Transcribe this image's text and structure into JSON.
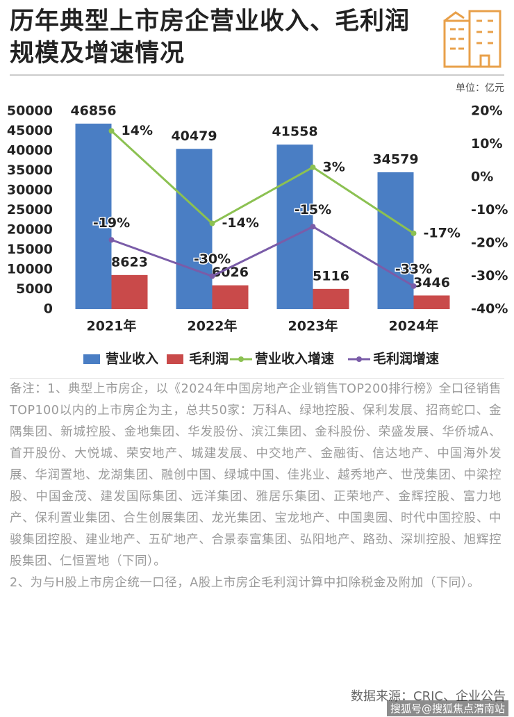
{
  "chart_data": {
    "type": "combo",
    "title": "历年典型上市房企营业收入、毛利润规模及增速情况",
    "unit": "单位：亿元",
    "categories": [
      "2021年",
      "2022年",
      "2023年",
      "2024年"
    ],
    "series": [
      {
        "name": "营业收入",
        "color": "#4a7ec4",
        "kind": "bar",
        "values": [
          46856,
          40479,
          41558,
          34579
        ]
      },
      {
        "name": "毛利润",
        "color": "#c94a4a",
        "kind": "bar",
        "values": [
          8623,
          6026,
          5116,
          3446
        ]
      },
      {
        "name": "营业收入增速",
        "color": "#8cc152",
        "kind": "line",
        "axis": "y2",
        "values": [
          14,
          -14,
          3,
          -17
        ],
        "value_labels": [
          "14%",
          "-14%",
          "3%",
          "-17%"
        ]
      },
      {
        "name": "毛利润增速",
        "color": "#7a5ca8",
        "kind": "line",
        "axis": "y2",
        "values": [
          -19,
          -30,
          -15,
          -33
        ],
        "value_labels": [
          "-19%",
          "-30%",
          "-15%",
          "-33%"
        ]
      }
    ],
    "ylim": [
      0,
      50000
    ],
    "yticks": [
      0,
      5000,
      10000,
      15000,
      20000,
      25000,
      30000,
      35000,
      40000,
      45000,
      50000
    ],
    "y2lim": [
      -40,
      20
    ],
    "y2ticks": [
      {
        "value": -40,
        "label": "-40%"
      },
      {
        "value": -30,
        "label": "-30%"
      },
      {
        "value": -20,
        "label": "-20%"
      },
      {
        "value": -10,
        "label": "-10%"
      },
      {
        "value": 0,
        "label": "0%"
      },
      {
        "value": 10,
        "label": "10%"
      },
      {
        "value": 20,
        "label": "20%"
      }
    ],
    "grid": false,
    "legend": "bottom"
  },
  "notes": [
    "备注：1、典型上市房企，以《2024年中国房地产企业销售TOP200排行榜》全口径销售TOP100以内的上市房企为主，总共50家：万科A、绿地控股、保利发展、招商蛇口、金隅集团、新城控股、金地集团、华发股份、滨江集团、金科股份、荣盛发展、华侨城A、首开股份、大悦城、荣安地产、城建发展、中交地产、金融街、信达地产、中国海外发展、华润置地、龙湖集团、融创中国、绿城中国、佳兆业、越秀地产、世茂集团、中梁控股、中国金茂、建发国际集团、远洋集团、雅居乐集团、正荣地产、金辉控股、富力地产、保利置业集团、合生创展集团、龙光集团、宝龙地产、中国奥园、时代中国控股、中骏集团控股、建业地产、五矿地产、合景泰富集团、弘阳地产、路劲、深圳控股、旭辉控股集团、仁恒置地（下同）。",
    "2、为与H股上市房企统一口径，A股上市房企毛利润计算中扣除税金及附加（下同）。"
  ],
  "source": "数据来源：CRIC、企业公告",
  "watermark": "搜狐号@搜狐焦点渭南站"
}
